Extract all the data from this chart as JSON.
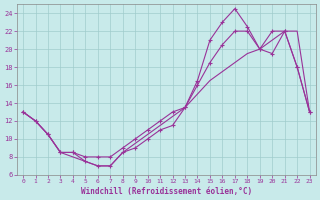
{
  "xlabel": "Windchill (Refroidissement éolien,°C)",
  "background_color": "#c8eaea",
  "grid_color": "#a0cccc",
  "line_color": "#993399",
  "xlim": [
    -0.5,
    23.5
  ],
  "ylim": [
    6,
    25
  ],
  "yticks": [
    6,
    8,
    10,
    12,
    14,
    16,
    18,
    20,
    22,
    24
  ],
  "xticks": [
    0,
    1,
    2,
    3,
    4,
    5,
    6,
    7,
    8,
    9,
    10,
    11,
    12,
    13,
    14,
    15,
    16,
    17,
    18,
    19,
    20,
    21,
    22,
    23
  ],
  "series1_x": [
    0,
    1,
    2,
    3,
    4,
    5,
    6,
    7,
    8,
    9,
    10,
    11,
    12,
    13,
    14,
    15,
    16,
    17,
    18,
    19,
    20,
    21,
    22,
    23
  ],
  "series1_y": [
    13,
    12,
    10.5,
    8.5,
    8.5,
    8,
    8,
    8,
    9,
    10,
    11,
    12,
    13,
    13.5,
    16,
    18.5,
    20.5,
    22,
    22,
    20,
    22,
    22,
    18,
    13
  ],
  "series2_x": [
    0,
    1,
    2,
    3,
    4,
    5,
    6,
    7,
    8,
    9,
    10,
    11,
    12,
    13,
    14,
    15,
    16,
    17,
    18,
    19,
    20,
    21,
    22,
    23
  ],
  "series2_y": [
    13,
    12,
    10.5,
    8.5,
    8.5,
    7.5,
    7,
    7,
    8.5,
    9,
    10,
    11,
    11.5,
    13.5,
    16.5,
    21,
    23,
    24.5,
    22.5,
    20,
    19.5,
    22,
    18,
    13
  ],
  "series3_x": [
    0,
    1,
    2,
    3,
    4,
    5,
    6,
    7,
    8,
    9,
    10,
    11,
    12,
    13,
    14,
    15,
    16,
    17,
    18,
    19,
    20,
    21,
    22,
    23
  ],
  "series3_y": [
    13,
    12,
    10.5,
    8.5,
    8,
    7.5,
    7,
    7,
    8.5,
    9.5,
    10.5,
    11.5,
    12.5,
    13.5,
    15,
    16.5,
    17.5,
    18.5,
    19.5,
    20,
    21,
    22,
    22,
    13
  ]
}
